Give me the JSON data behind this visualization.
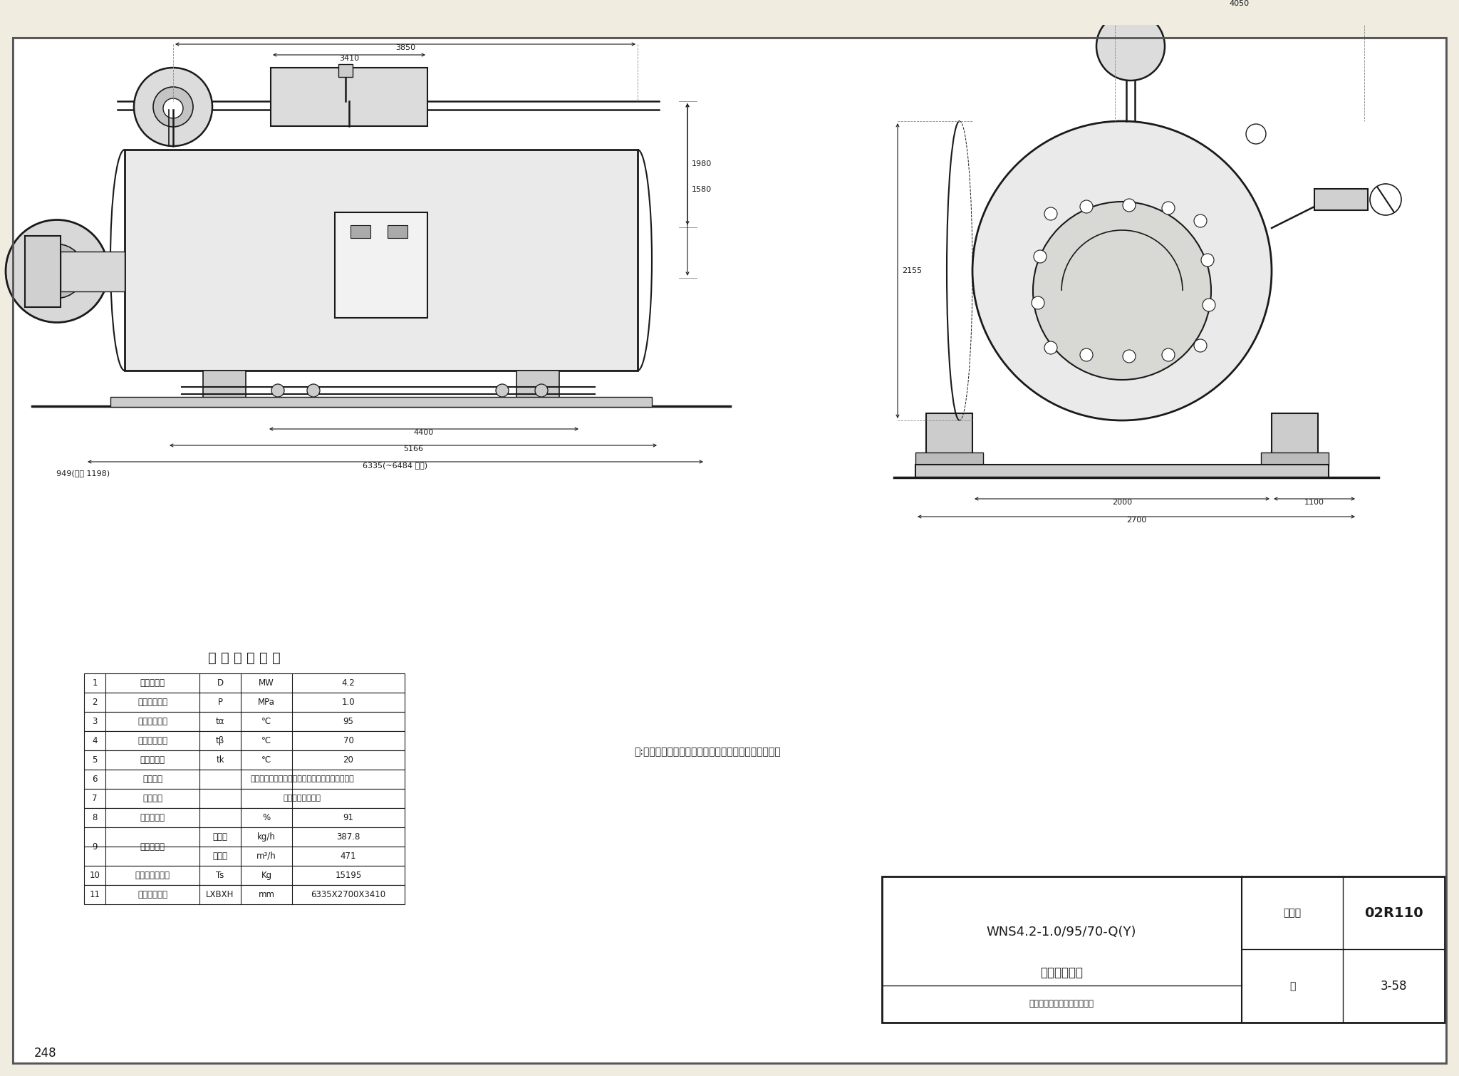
{
  "page_bg": "#f0ece0",
  "line_color": "#1a1a1a",
  "table_title": "锅 炉 主 要 性 能",
  "note_text": "注:本图按广州市天鹿锅炉厂锅炉产品的技术资料编制。",
  "title_box_text1": "WNS4.2-1.0/95/70-Q(Y)",
  "title_box_text2": "热水锅炉总图",
  "title_box_label1": "图集号",
  "title_box_label2": "02R110",
  "title_box_label3": "页",
  "title_box_label4": "3-58",
  "title_box_sig": "市标参标校对盖章笮设计优弧",
  "page_number": "248",
  "table_rows": [
    {
      "num": "1",
      "name": "额定热功率",
      "sym": "D",
      "unit": "MW",
      "val": "4.2",
      "type": "normal"
    },
    {
      "num": "2",
      "name": "额定工作压力",
      "sym": "P",
      "unit": "MPa",
      "val": "1.0",
      "type": "normal"
    },
    {
      "num": "3",
      "name": "额定出水温度",
      "sym": "tα",
      "unit": "°C",
      "val": "95",
      "type": "normal"
    },
    {
      "num": "4",
      "name": "额定进水温度",
      "sym": "tβ",
      "unit": "°C",
      "val": "70",
      "type": "normal"
    },
    {
      "num": "5",
      "name": "冷空气温度",
      "sym": "tk",
      "unit": "°C",
      "val": "20",
      "type": "normal"
    },
    {
      "num": "6",
      "name": "适用燃料",
      "sym": "",
      "unit": "轻油、重油、管道某气、天然气、液化石油气等。",
      "val": "",
      "type": "merged"
    },
    {
      "num": "7",
      "name": "调节方式",
      "sym": "",
      "unit": "全自动，滑动二级",
      "val": "",
      "type": "merged"
    },
    {
      "num": "8",
      "name": "设计热效率",
      "sym": "",
      "unit": "%",
      "val": "91",
      "type": "no_sym"
    },
    {
      "num": "9",
      "name": "燃料消耗量",
      "sym": "轻柴油",
      "unit": "kg/h",
      "val": "387.8",
      "type": "sub1"
    },
    {
      "num": "9",
      "name": "",
      "sym": "天然气",
      "unit": "m³/h",
      "val": "471",
      "type": "sub2"
    },
    {
      "num": "10",
      "name": "最大运输件重量",
      "sym": "Ts",
      "unit": "Kg",
      "val": "15195",
      "type": "normal"
    },
    {
      "num": "11",
      "name": "锅炉外形尺寸",
      "sym": "LXBXH",
      "unit": "mm",
      "val": "6335X2700X3410",
      "type": "normal"
    }
  ]
}
